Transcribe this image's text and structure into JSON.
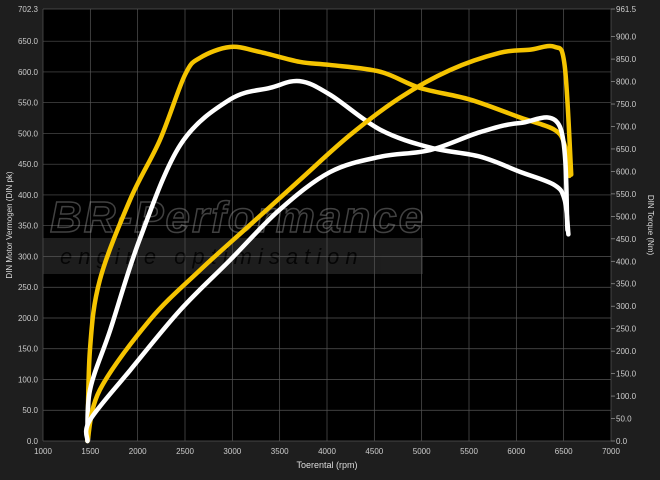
{
  "chart_data": {
    "type": "line",
    "title": "",
    "xlabel": "Toerental (rpm)",
    "ylabel_left": "DIN Motor Vermogen (DIN pk)",
    "ylabel_right": "DIN Torque (Nm)",
    "xlim": [
      1000,
      7000
    ],
    "ylim_left": [
      0,
      702.3
    ],
    "ylim_right": [
      0,
      961.5
    ],
    "x_ticks": [
      "1000",
      "1500",
      "2000",
      "2500",
      "3000",
      "3500",
      "4000",
      "4500",
      "5000",
      "5500",
      "6000",
      "6500",
      "7000"
    ],
    "y_left_ticks": [
      "0.0",
      "50.0",
      "100.0",
      "150.0",
      "200.0",
      "250.0",
      "300.0",
      "350.0",
      "400.0",
      "450.0",
      "500.0",
      "550.0",
      "600.0",
      "650.0",
      "702.3"
    ],
    "y_right_ticks": [
      "0.0",
      "50.0",
      "100.0",
      "150.0",
      "200.0",
      "250.0",
      "300.0",
      "350.0",
      "400.0",
      "450.0",
      "500.0",
      "550.0",
      "600.0",
      "650.0",
      "700.0",
      "750.0",
      "800.0",
      "850.0",
      "900.0",
      "961.5"
    ],
    "grid": true,
    "watermark": {
      "line1": "BR-Performance",
      "line2": "engine optimisation"
    },
    "series": [
      {
        "axis": "right",
        "color": "#f5c400",
        "x": [
          1470,
          1496,
          1600,
          1920,
          2235,
          2500,
          2660,
          2975,
          3290,
          3710,
          4030,
          4560,
          4980,
          5510,
          6040,
          6400,
          6510,
          6560
        ],
        "values": [
          0,
          203,
          358,
          537,
          670,
          815,
          853,
          877,
          866,
          844,
          837,
          822,
          786,
          760,
          720,
          693,
          659,
          590
        ]
      },
      {
        "axis": "right",
        "color": "#ffffff",
        "x": [
          1470,
          1496,
          1710,
          2020,
          2450,
          2975,
          3400,
          3710,
          4030,
          4560,
          5090,
          5615,
          6040,
          6400,
          6510,
          6550
        ],
        "values": [
          0,
          113,
          247,
          448,
          659,
          760,
          786,
          801,
          771,
          693,
          653,
          633,
          599,
          570,
          537,
          460
        ]
      },
      {
        "axis": "left",
        "color": "#f5c400",
        "x": [
          1470,
          1600,
          2130,
          2660,
          3185,
          3710,
          4240,
          4770,
          5300,
          5825,
          6140,
          6400,
          6510,
          6580
        ],
        "values": [
          0,
          83,
          197,
          278,
          351,
          424,
          497,
          558,
          603,
          631,
          636,
          641,
          611,
          433
        ]
      },
      {
        "axis": "left",
        "color": "#ffffff",
        "x": [
          1470,
          1496,
          1920,
          2450,
          2975,
          3500,
          4030,
          4560,
          5090,
          5615,
          6040,
          6460,
          6540
        ],
        "values": [
          0,
          34,
          115,
          213,
          294,
          376,
          437,
          462,
          473,
          502,
          517,
          511,
          343
        ]
      }
    ]
  }
}
